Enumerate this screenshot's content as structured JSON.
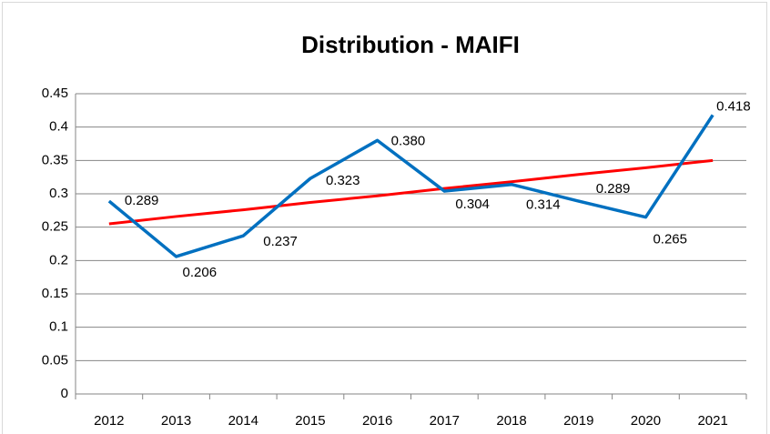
{
  "chart_data": {
    "type": "line",
    "title": "Distribution - MAIFI",
    "categories": [
      "2012",
      "2013",
      "2014",
      "2015",
      "2016",
      "2017",
      "2018",
      "2019",
      "2020",
      "2021"
    ],
    "series": [
      {
        "color": "#0070c0",
        "values": [
          0.289,
          0.206,
          0.237,
          0.323,
          0.38,
          0.304,
          0.314,
          0.289,
          0.265,
          0.418
        ],
        "value_labels": [
          "0.289",
          "0.206",
          "0.237",
          "0.323",
          "0.380",
          "0.304",
          "0.314",
          "0.289",
          "0.265",
          "0.418"
        ]
      },
      {
        "color": "#ff0000",
        "values": [
          0.255,
          0.266,
          0.276,
          0.287,
          0.297,
          0.308,
          0.318,
          0.329,
          0.339,
          0.35
        ]
      }
    ],
    "ylim": [
      0,
      0.45
    ],
    "yticks": [
      0,
      0.05,
      0.1,
      0.15,
      0.2,
      0.25,
      0.3,
      0.35,
      0.4,
      0.45
    ],
    "grid": true
  }
}
